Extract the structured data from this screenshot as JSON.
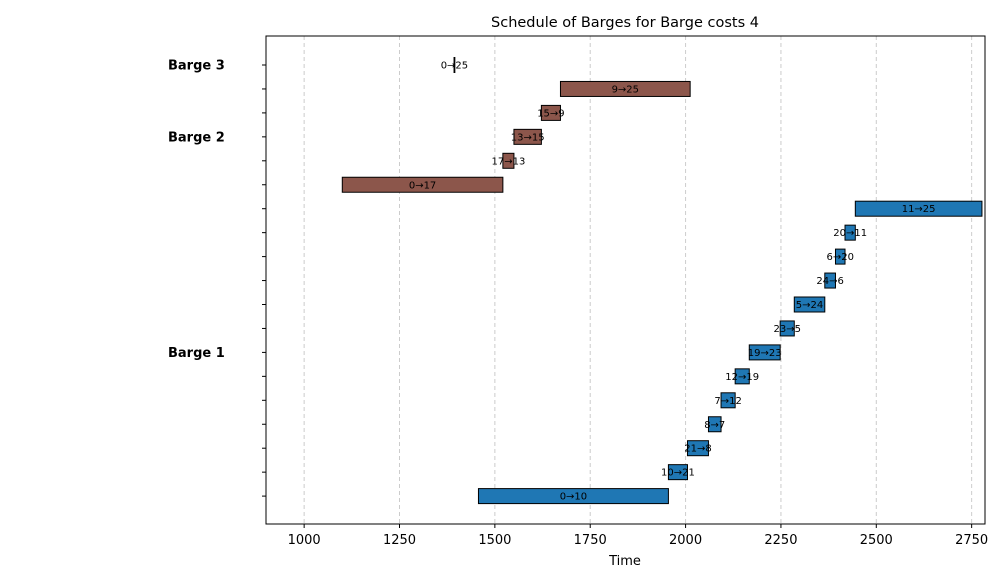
{
  "chart_data": {
    "type": "gantt",
    "title": "Schedule of Barges for Barge costs 4",
    "xlabel": "Time",
    "ylabel": "",
    "xlim": [
      900,
      2785
    ],
    "xticks": [
      1000,
      1250,
      1500,
      1750,
      2000,
      2250,
      2500,
      2750
    ],
    "grid": "x-dashed",
    "row_count": 19,
    "groups": [
      {
        "name": "Barge 1",
        "row": 12
      },
      {
        "name": "Barge 2",
        "row": 3
      },
      {
        "name": "Barge 3",
        "row": 0
      }
    ],
    "colors": {
      "Barge 1": "#1f77b4",
      "Barge 2": "#8c564b",
      "Barge 3": "#8c564b"
    },
    "tasks": [
      {
        "barge": "Barge 3",
        "label": "0→25",
        "start": 1393,
        "end": 1395,
        "row": 0
      },
      {
        "barge": "Barge 2",
        "label": "9→25",
        "start": 1672,
        "end": 2012,
        "row": 1
      },
      {
        "barge": "Barge 2",
        "label": "15→9",
        "start": 1622,
        "end": 1672,
        "row": 2
      },
      {
        "barge": "Barge 2",
        "label": "13→15",
        "start": 1550,
        "end": 1622,
        "row": 3
      },
      {
        "barge": "Barge 2",
        "label": "17→13",
        "start": 1521,
        "end": 1550,
        "row": 4
      },
      {
        "barge": "Barge 2",
        "label": "0→17",
        "start": 1100,
        "end": 1521,
        "row": 5
      },
      {
        "barge": "Barge 1",
        "label": "11→25",
        "start": 2445,
        "end": 2777,
        "row": 6
      },
      {
        "barge": "Barge 1",
        "label": "20→11",
        "start": 2418,
        "end": 2445,
        "row": 7
      },
      {
        "barge": "Barge 1",
        "label": "6→20",
        "start": 2393,
        "end": 2418,
        "row": 8
      },
      {
        "barge": "Barge 1",
        "label": "24→6",
        "start": 2365,
        "end": 2393,
        "row": 9
      },
      {
        "barge": "Barge 1",
        "label": "5→24",
        "start": 2285,
        "end": 2365,
        "row": 10
      },
      {
        "barge": "Barge 1",
        "label": "23→5",
        "start": 2248,
        "end": 2285,
        "row": 11
      },
      {
        "barge": "Barge 1",
        "label": "19→23",
        "start": 2167,
        "end": 2248,
        "row": 12
      },
      {
        "barge": "Barge 1",
        "label": "12→19",
        "start": 2130,
        "end": 2167,
        "row": 13
      },
      {
        "barge": "Barge 1",
        "label": "7→12",
        "start": 2093,
        "end": 2130,
        "row": 14
      },
      {
        "barge": "Barge 1",
        "label": "8→7",
        "start": 2060,
        "end": 2093,
        "row": 15
      },
      {
        "barge": "Barge 1",
        "label": "21→8",
        "start": 2005,
        "end": 2060,
        "row": 16
      },
      {
        "barge": "Barge 1",
        "label": "10→21",
        "start": 1955,
        "end": 2005,
        "row": 17
      },
      {
        "barge": "Barge 1",
        "label": "0→10",
        "start": 1457,
        "end": 1955,
        "row": 18
      }
    ]
  }
}
